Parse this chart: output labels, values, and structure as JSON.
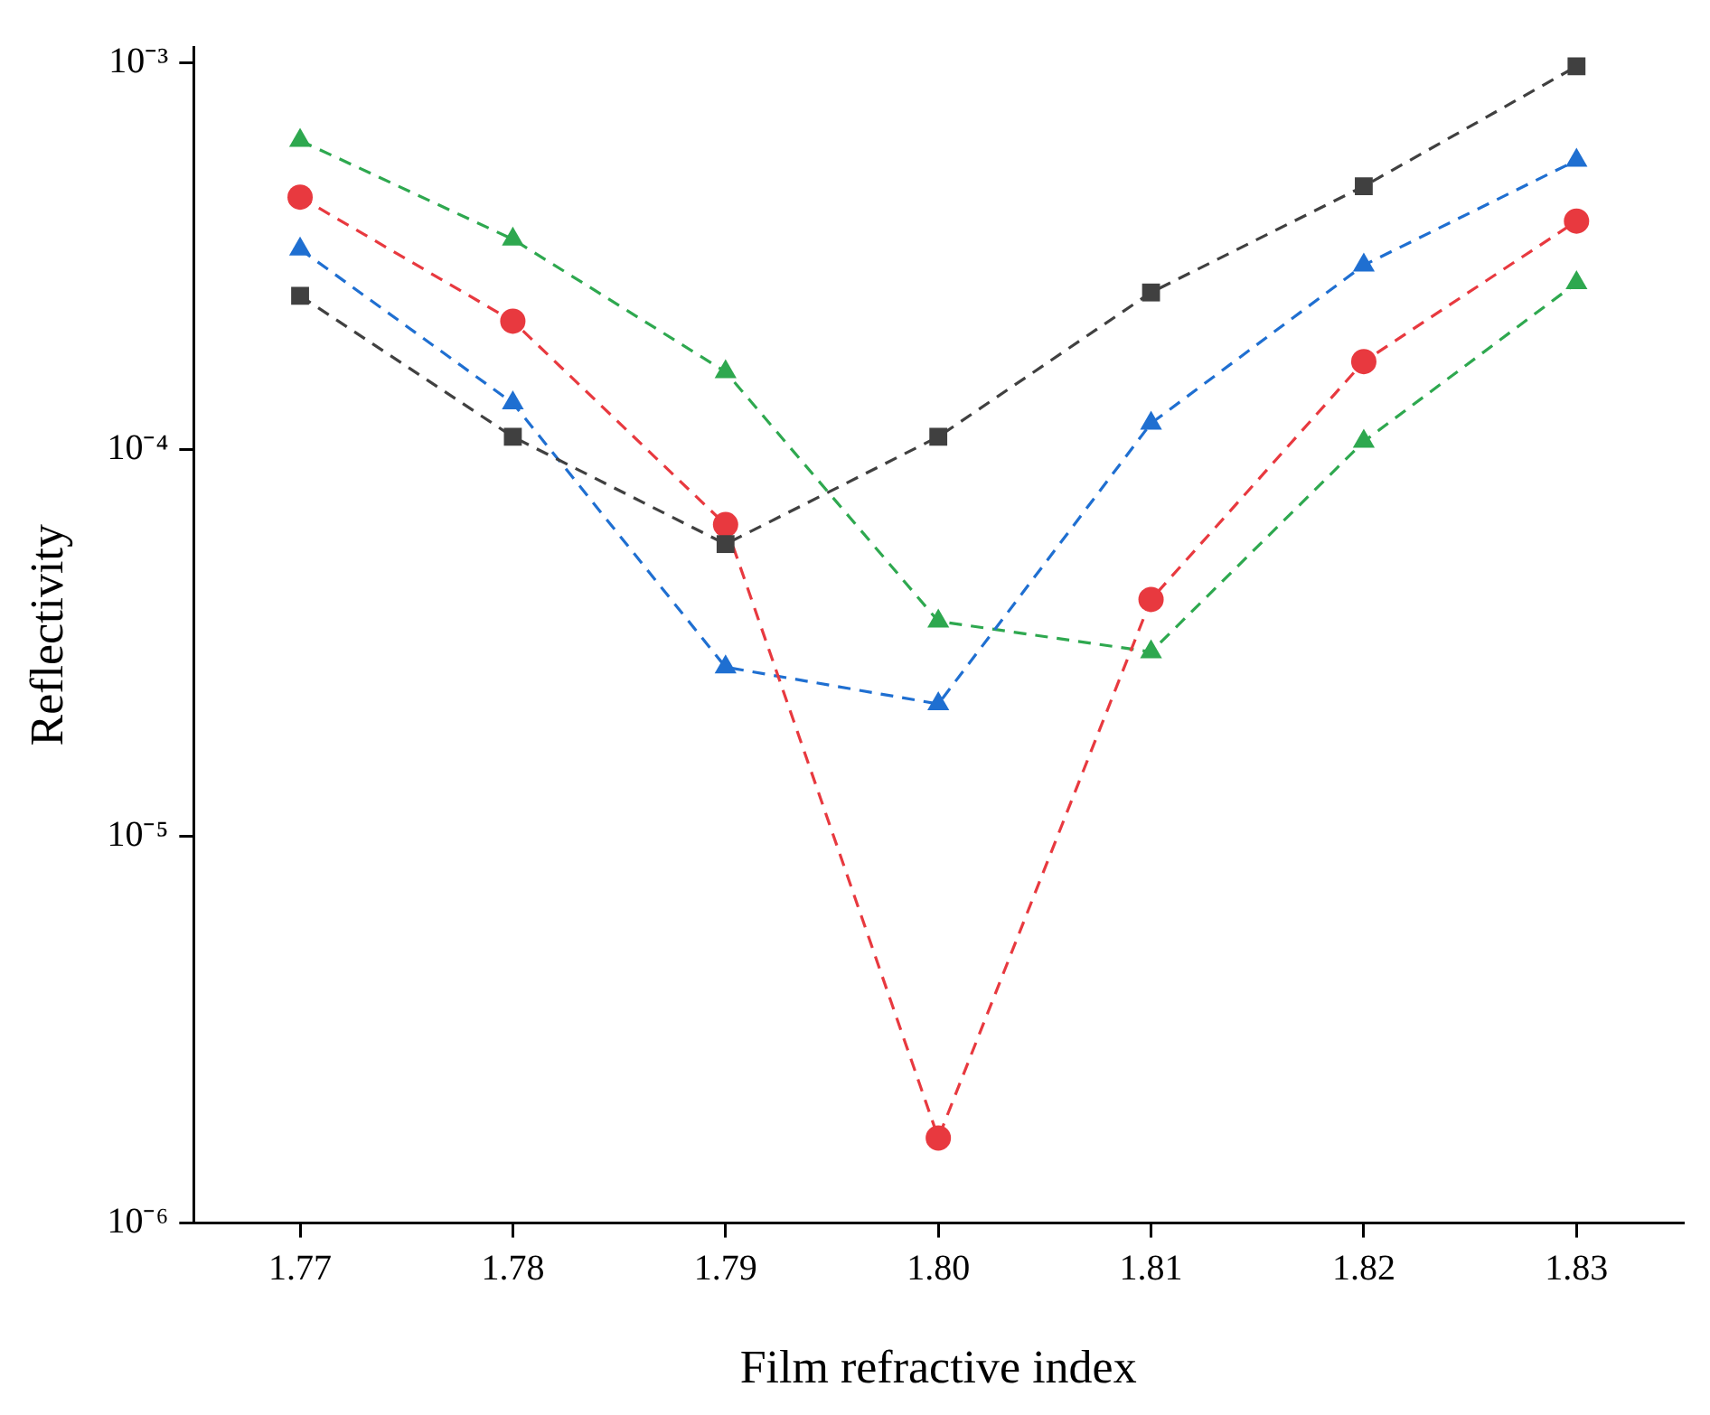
{
  "chart_data": {
    "type": "line",
    "xlabel": "Film refractive index",
    "ylabel": "Reflectivity",
    "x": [
      1.77,
      1.78,
      1.79,
      1.8,
      1.81,
      1.82,
      1.83
    ],
    "series": [
      {
        "color": "#404040",
        "marker": "square",
        "values": [
          0.00025,
          0.000108,
          5.7e-05,
          0.000108,
          0.000255,
          0.00048,
          0.00098
        ]
      },
      {
        "color": "#e8393f",
        "marker": "circle",
        "values": [
          0.00045,
          0.000215,
          6.4e-05,
          1.66e-06,
          4.1e-05,
          0.000169,
          0.00039
        ]
      },
      {
        "color": "#1f6fd1",
        "marker": "triangle",
        "values": [
          0.00033,
          0.000132,
          2.74e-05,
          2.2e-05,
          0.000117,
          0.0003,
          0.00056
        ]
      },
      {
        "color": "#2ea84f",
        "marker": "triangle",
        "values": [
          0.00063,
          0.00035,
          0.000159,
          3.6e-05,
          3e-05,
          0.000105,
          0.00027
        ]
      }
    ],
    "xlim": [
      1.765,
      1.835
    ],
    "xticks": [
      1.77,
      1.78,
      1.79,
      {
        "value": 1.8,
        "label": "1.80"
      },
      1.81,
      1.82,
      1.83
    ],
    "ylim": [
      1e-06,
      0.0011
    ],
    "yticks": [
      {
        "value": 1e-06,
        "label": "10⁻⁶"
      },
      {
        "value": 1e-05,
        "label": "10⁻⁵"
      },
      {
        "value": 0.0001,
        "label": "10⁻⁴"
      },
      {
        "value": 0.001,
        "label": "10⁻³"
      }
    ],
    "log": "y",
    "grid": false,
    "legend": false,
    "line_style": "dashed"
  }
}
